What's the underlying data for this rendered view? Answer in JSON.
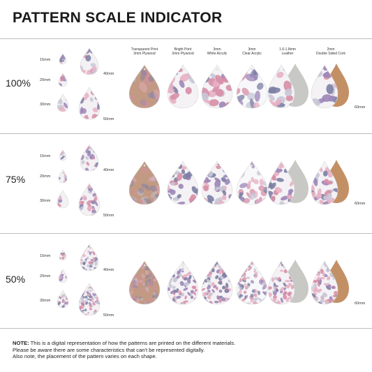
{
  "title": "PATTERN SCALE INDICATOR",
  "materials": [
    {
      "line1": "Transparent Print",
      "line2": "3mm Plywood",
      "icon": "plywood-teardrop"
    },
    {
      "line1": "Bright Print",
      "line2": "3mm Plywood",
      "icon": "plywood-teardrop"
    },
    {
      "line1": "3mm",
      "line2": "White Acrylic",
      "icon": "acrylic-teardrop"
    },
    {
      "line1": "3mm",
      "line2": "Clear Acrylic",
      "icon": "acrylic-teardrop"
    },
    {
      "line1": "1.6-1.8mm",
      "line2": "Leather",
      "icon": "leather-teardrop"
    },
    {
      "line1": "2mm",
      "line2": "Double Sided Cork",
      "icon": "cork-teardrop"
    }
  ],
  "sizes": [
    "15mm",
    "20mm",
    "30mm",
    "40mm",
    "50mm"
  ],
  "material_size": "60mm",
  "rows": [
    {
      "scale": "100%"
    },
    {
      "scale": "75%"
    },
    {
      "scale": "50%"
    }
  ],
  "colors": {
    "plywood": "#c29a84",
    "leather_back": "#c8c8c4",
    "cork_back": "#c39066",
    "pattern": [
      "#d78ea6",
      "#9c86b8",
      "#7c7fa4",
      "#e7b0c3",
      "#c6c7d6"
    ]
  },
  "note": {
    "label": "NOTE:",
    "line1": "This is a digital representation of how the patterns are printed on the different materials.",
    "line2": "Please be aware there are some characteristics that can't be represented digitally.",
    "line3": "Also note, the placement of the pattern varies on each shape."
  }
}
